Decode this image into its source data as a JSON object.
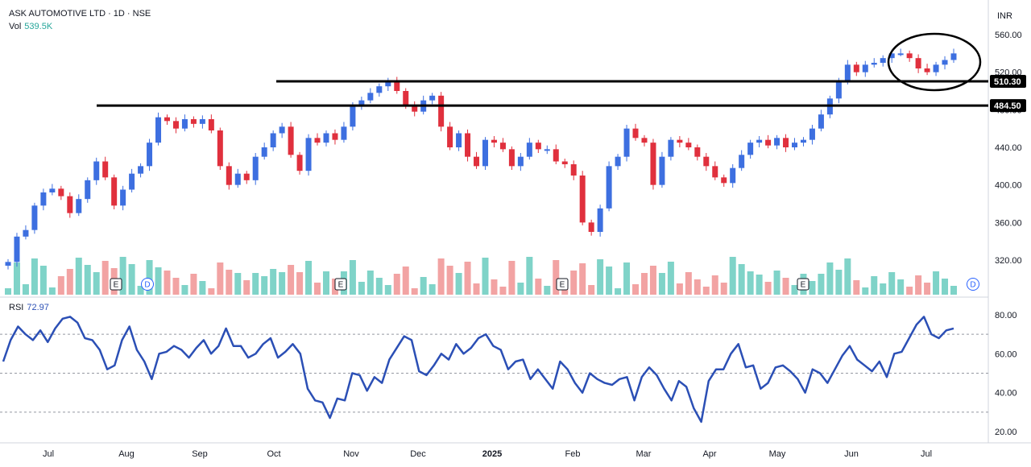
{
  "header": {
    "title": "ASK AUTOMOTIVE LTD · 1D · NSE",
    "volume_label": "Vol",
    "volume_value": "539.5K"
  },
  "currency": "INR",
  "rsi_panel": {
    "label": "RSI",
    "value": "72.97"
  },
  "chart_data": [
    {
      "type": "candlestick",
      "y_ticks": [
        "560.00",
        "520.00",
        "480.00",
        "440.00",
        "400.00",
        "360.00",
        "320.00"
      ],
      "x_ticks": [
        "Jul",
        "Aug",
        "Sep",
        "Oct",
        "Nov",
        "Dec",
        "2025",
        "Feb",
        "Mar",
        "Apr",
        "May",
        "Jun",
        "Jul"
      ],
      "ylim": [
        290,
        575
      ],
      "colors": {
        "up": "#3d6fe0",
        "down": "#e0303d",
        "vol_up": "#7fd3c8",
        "vol_down": "#f2a3a3"
      },
      "levels": [
        {
          "value": 510.3,
          "label": "510.30"
        },
        {
          "value": 484.5,
          "label": "484.50"
        }
      ],
      "events": [
        "E",
        "D",
        "E",
        "E",
        "E",
        "D"
      ],
      "close_approx": [
        318,
        345,
        352,
        378,
        392,
        396,
        388,
        370,
        385,
        405,
        425,
        408,
        378,
        395,
        412,
        420,
        445,
        472,
        468,
        460,
        470,
        465,
        470,
        458,
        420,
        400,
        412,
        405,
        430,
        440,
        455,
        462,
        432,
        415,
        450,
        445,
        455,
        448,
        462,
        485,
        490,
        498,
        505,
        510,
        500,
        485,
        478,
        490,
        495,
        462,
        440,
        455,
        430,
        420,
        448,
        445,
        438,
        420,
        430,
        445,
        438,
        438,
        425,
        422,
        410,
        360,
        350,
        375,
        420,
        430,
        460,
        450,
        445,
        400,
        430,
        448,
        445,
        440,
        430,
        420,
        408,
        402,
        418,
        432,
        445,
        448,
        442,
        450,
        440,
        445,
        448,
        460,
        475,
        492,
        510,
        528,
        520,
        528,
        530,
        535,
        540,
        540,
        535,
        524,
        520,
        528,
        533,
        540
      ]
    },
    {
      "type": "line",
      "name": "RSI",
      "y_ticks": [
        "80.00",
        "60.00",
        "40.00",
        "20.00"
      ],
      "ylim": [
        18,
        85
      ],
      "levels": [
        70,
        50,
        30
      ],
      "values": [
        56,
        67,
        74,
        70,
        67,
        72,
        66,
        73,
        78,
        79,
        76,
        68,
        67,
        62,
        52,
        54,
        67,
        74,
        62,
        56,
        47,
        60,
        61,
        64,
        62,
        58,
        63,
        67,
        60,
        64,
        73,
        64,
        64,
        58,
        60,
        65,
        68,
        58,
        61,
        65,
        60,
        42,
        36,
        35,
        27,
        37,
        36,
        50,
        49,
        41,
        48,
        45,
        57,
        63,
        69,
        67,
        51,
        49,
        54,
        60,
        57,
        65,
        60,
        63,
        68,
        70,
        64,
        62,
        52,
        56,
        57,
        47,
        52,
        47,
        42,
        56,
        52,
        45,
        40,
        50,
        47,
        45,
        44,
        47,
        48,
        36,
        48,
        53,
        49,
        42,
        36,
        46,
        43,
        32,
        25,
        46,
        52,
        52,
        60,
        65,
        53,
        54,
        42,
        45,
        53,
        54,
        51,
        47,
        40,
        52,
        50,
        45,
        52,
        59,
        64,
        57,
        54,
        51,
        56,
        48,
        60,
        61,
        68,
        75,
        79,
        70,
        68,
        72,
        73
      ]
    }
  ]
}
